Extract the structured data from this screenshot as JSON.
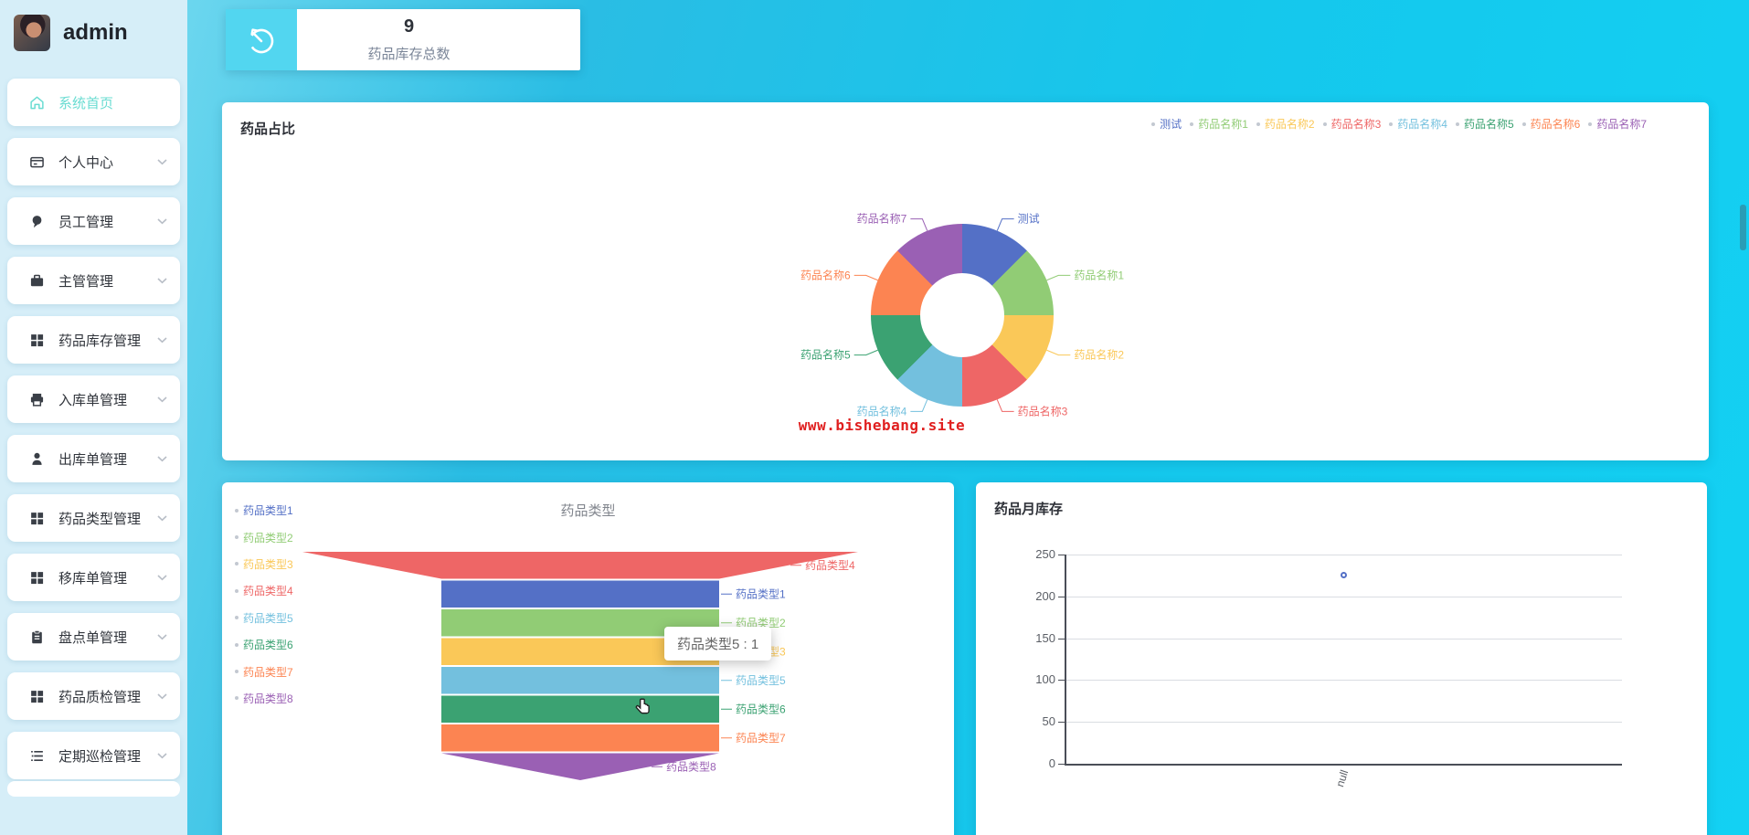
{
  "palette": [
    "#5470c6",
    "#91cc75",
    "#fac858",
    "#ee6666",
    "#73c0de",
    "#3ba272",
    "#fc8452",
    "#9a60b4"
  ],
  "colors": {
    "sidebar_bg": "#d6eef8",
    "active_menu": "#6adcd2",
    "stat_icon_bg": "#52d6f0",
    "watermark_red": "#e01f1f",
    "bg_cyan": "#15c7ec"
  },
  "sidebar": {
    "username": "admin",
    "items": [
      {
        "label": "系统首页",
        "icon": "home-icon",
        "active": true,
        "chevron": false
      },
      {
        "label": "个人中心",
        "icon": "id-card-icon",
        "active": false,
        "chevron": true
      },
      {
        "label": "员工管理",
        "icon": "employee-icon",
        "active": false,
        "chevron": true
      },
      {
        "label": "主管管理",
        "icon": "briefcase-icon",
        "active": false,
        "chevron": true
      },
      {
        "label": "药品库存管理",
        "icon": "grid-icon",
        "active": false,
        "chevron": true
      },
      {
        "label": "入库单管理",
        "icon": "printer-icon",
        "active": false,
        "chevron": true
      },
      {
        "label": "出库单管理",
        "icon": "person-icon",
        "active": false,
        "chevron": true
      },
      {
        "label": "药品类型管理",
        "icon": "grid-icon",
        "active": false,
        "chevron": true
      },
      {
        "label": "移库单管理",
        "icon": "grid-icon",
        "active": false,
        "chevron": true
      },
      {
        "label": "盘点单管理",
        "icon": "clipboard-icon",
        "active": false,
        "chevron": true
      },
      {
        "label": "药品质检管理",
        "icon": "grid-icon",
        "active": false,
        "chevron": true
      },
      {
        "label": "定期巡检管理",
        "icon": "list-icon",
        "active": false,
        "chevron": true
      }
    ]
  },
  "stat_card": {
    "value": "9",
    "label": "药品库存总数",
    "icon": "timer-icon"
  },
  "pie_card": {
    "watermark": "www.bishebang.site"
  },
  "chart_data": [
    {
      "type": "pie",
      "shape": "donut",
      "title": "药品占比",
      "legend_position": "top-right",
      "labels": [
        "测试",
        "药品名称1",
        "药品名称2",
        "药品名称3",
        "药品名称4",
        "药品名称5",
        "药品名称6",
        "药品名称7"
      ],
      "values": [
        1,
        1,
        1,
        1,
        1,
        1,
        1,
        1
      ],
      "colors": [
        "#5470c6",
        "#91cc75",
        "#fac858",
        "#ee6666",
        "#73c0de",
        "#3ba272",
        "#fc8452",
        "#9a60b4"
      ]
    },
    {
      "type": "funnel",
      "title": "药品类型",
      "legend": [
        "药品类型1",
        "药品类型2",
        "药品类型3",
        "药品类型4",
        "药品类型5",
        "药品类型6",
        "药品类型7",
        "药品类型8"
      ],
      "legend_colors": [
        "#5470c6",
        "#91cc75",
        "#fac858",
        "#ee6666",
        "#73c0de",
        "#3ba272",
        "#fc8452",
        "#9a60b4"
      ],
      "items_top_to_bottom": [
        {
          "name": "药品类型4",
          "value": 2,
          "color": "#ee6666"
        },
        {
          "name": "药品类型1",
          "value": 1,
          "color": "#5470c6"
        },
        {
          "name": "药品类型2",
          "value": 1,
          "color": "#91cc75"
        },
        {
          "name": "药品类型3",
          "value": 1,
          "color": "#fac858"
        },
        {
          "name": "药品类型5",
          "value": 1,
          "color": "#73c0de"
        },
        {
          "name": "药品类型6",
          "value": 1,
          "color": "#3ba272"
        },
        {
          "name": "药品类型7",
          "value": 1,
          "color": "#fc8452"
        },
        {
          "name": "药品类型8",
          "value": 1,
          "color": "#9a60b4"
        }
      ],
      "tooltip": "药品类型5 : 1"
    },
    {
      "type": "line",
      "title": "药品月库存",
      "x": [
        "null"
      ],
      "values": [
        225
      ],
      "yticks": [
        250,
        200,
        150,
        100,
        50,
        0
      ],
      "ylim": [
        0,
        250
      ],
      "point_color": "#5470c6",
      "grid": true
    }
  ]
}
